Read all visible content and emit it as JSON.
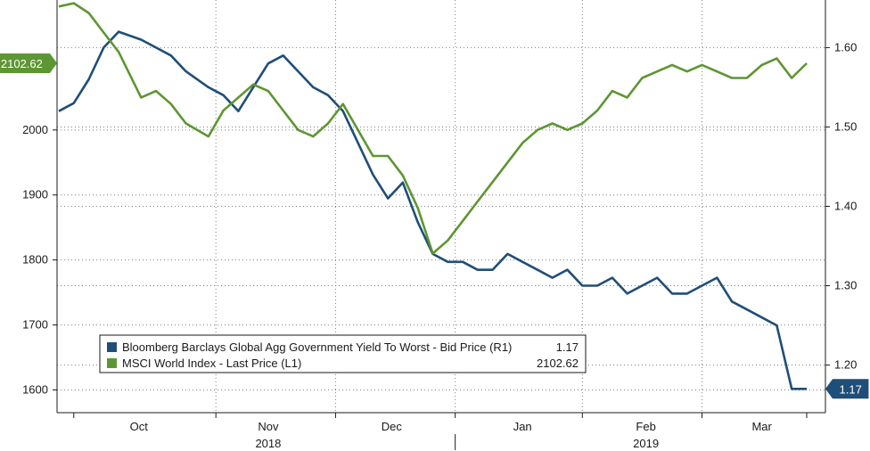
{
  "chart_data": {
    "type": "line",
    "title": "",
    "xlabel": "",
    "x_ticks": {
      "months": [
        "Oct",
        "Nov",
        "Dec",
        "Jan",
        "Feb",
        "Mar"
      ],
      "years": [
        "2018",
        "2019"
      ]
    },
    "left_axis": {
      "ticks": [
        "2000",
        "1900",
        "1800",
        "1700",
        "1600"
      ],
      "range": [
        1565,
        2200
      ]
    },
    "right_axis": {
      "ticks": [
        "1.60",
        "1.50",
        "1.40",
        "1.30",
        "1.20"
      ],
      "range": [
        1.14,
        1.66
      ]
    },
    "grid": true,
    "legend_position": "bottom-left",
    "series": [
      {
        "name": "Bloomberg Barclays Global Agg Government Yield To Worst - Bid Price (R1)",
        "axis": "right",
        "color": "#1f4e79",
        "last_value": "1.17",
        "x": [
          0.0,
          0.02,
          0.04,
          0.06,
          0.08,
          0.11,
          0.13,
          0.15,
          0.17,
          0.2,
          0.22,
          0.24,
          0.26,
          0.28,
          0.3,
          0.32,
          0.34,
          0.36,
          0.38,
          0.4,
          0.42,
          0.44,
          0.46,
          0.48,
          0.5,
          0.52,
          0.54,
          0.56,
          0.58,
          0.6,
          0.62,
          0.64,
          0.66,
          0.68,
          0.7,
          0.72,
          0.74,
          0.76,
          0.78,
          0.8,
          0.82,
          0.84,
          0.86,
          0.88,
          0.9,
          0.92,
          0.94,
          0.96,
          0.98,
          1.0
        ],
        "values": [
          1.52,
          1.53,
          1.56,
          1.6,
          1.62,
          1.61,
          1.6,
          1.59,
          1.57,
          1.55,
          1.54,
          1.52,
          1.55,
          1.58,
          1.59,
          1.57,
          1.55,
          1.54,
          1.52,
          1.48,
          1.44,
          1.41,
          1.43,
          1.38,
          1.34,
          1.33,
          1.33,
          1.32,
          1.32,
          1.34,
          1.33,
          1.32,
          1.31,
          1.32,
          1.3,
          1.3,
          1.31,
          1.29,
          1.3,
          1.31,
          1.29,
          1.29,
          1.3,
          1.31,
          1.28,
          1.27,
          1.26,
          1.25,
          1.17,
          1.17
        ]
      },
      {
        "name": "MSCI World Index - Last Price (L1)",
        "axis": "left",
        "color": "#5d9632",
        "last_value": "2102.62",
        "x": [
          0.0,
          0.02,
          0.04,
          0.06,
          0.08,
          0.11,
          0.13,
          0.15,
          0.17,
          0.2,
          0.22,
          0.24,
          0.26,
          0.28,
          0.3,
          0.32,
          0.34,
          0.36,
          0.38,
          0.4,
          0.42,
          0.44,
          0.46,
          0.48,
          0.5,
          0.52,
          0.54,
          0.56,
          0.58,
          0.6,
          0.62,
          0.64,
          0.66,
          0.68,
          0.7,
          0.72,
          0.74,
          0.76,
          0.78,
          0.8,
          0.82,
          0.84,
          0.86,
          0.88,
          0.9,
          0.92,
          0.94,
          0.96,
          0.98,
          1.0
        ],
        "values": [
          2190,
          2195,
          2180,
          2150,
          2120,
          2050,
          2060,
          2040,
          2010,
          1990,
          2030,
          2050,
          2070,
          2060,
          2030,
          2000,
          1990,
          2010,
          2040,
          2000,
          1960,
          1960,
          1930,
          1880,
          1810,
          1830,
          1860,
          1890,
          1920,
          1950,
          1980,
          2000,
          2010,
          2000,
          2010,
          2030,
          2060,
          2050,
          2080,
          2090,
          2100,
          2090,
          2100,
          2090,
          2080,
          2080,
          2100,
          2110,
          2080,
          2102.62
        ]
      }
    ]
  }
}
